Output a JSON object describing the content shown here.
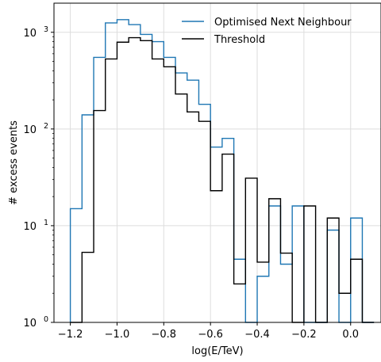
{
  "chart_data": {
    "type": "step-histogram",
    "xlabel": "log(E/TeV)",
    "ylabel": "# excess events",
    "xlim": [
      -1.27,
      0.13
    ],
    "ylim": [
      1,
      2000
    ],
    "yscale": "log",
    "grid": true,
    "legend_position": "top-right",
    "x_ticks": [
      -1.2,
      -1.0,
      -0.8,
      -0.6,
      -0.4,
      -0.2,
      0.0
    ],
    "x_tick_labels": [
      "−1.2",
      "−1.0",
      "−0.8",
      "−0.6",
      "−0.4",
      "−0.2",
      "0.0"
    ],
    "y_ticks": [
      1,
      10,
      100,
      1000
    ],
    "y_tick_labels": [
      {
        "base": "10",
        "exp": "0"
      },
      {
        "base": "10",
        "exp": "1"
      },
      {
        "base": "10",
        "exp": "2"
      },
      {
        "base": "10",
        "exp": "3"
      }
    ],
    "bin_edges": [
      -1.2,
      -1.15,
      -1.1,
      -1.05,
      -1.0,
      -0.95,
      -0.9,
      -0.85,
      -0.8,
      -0.75,
      -0.7,
      -0.65,
      -0.6,
      -0.55,
      -0.5,
      -0.45,
      -0.4,
      -0.35,
      -0.3,
      -0.25,
      -0.2,
      -0.15,
      -0.1,
      -0.05,
      0.0,
      0.05,
      0.1
    ],
    "series": [
      {
        "name": "Optimised Next Neighbour",
        "color": "#1f77b4",
        "values": [
          15,
          140,
          550,
          1250,
          1350,
          1200,
          950,
          800,
          550,
          380,
          320,
          180,
          65,
          80,
          4.5,
          1,
          3,
          16,
          4,
          16,
          1,
          1,
          9,
          1,
          12,
          1
        ]
      },
      {
        "name": "Threshold",
        "color": "#000000",
        "values": [
          1,
          5.3,
          155,
          530,
          790,
          880,
          820,
          530,
          440,
          230,
          150,
          120,
          23,
          55,
          2.5,
          31,
          4.2,
          19,
          5.2,
          1,
          16,
          1,
          12,
          2,
          4.5,
          1
        ]
      }
    ]
  }
}
